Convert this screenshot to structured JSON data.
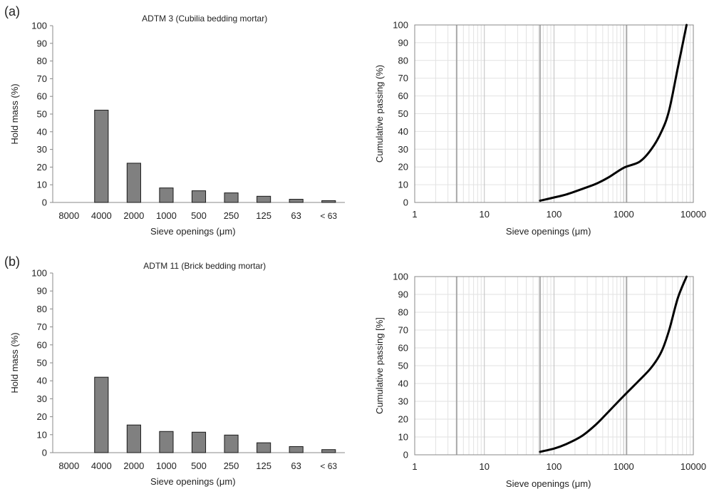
{
  "panels": [
    {
      "label": "(a)"
    },
    {
      "label": "(b)"
    }
  ],
  "colors": {
    "bar_fill": "#808080",
    "bar_stroke": "#1a1a1a",
    "curve": "#000000",
    "grid_major": "#bfbfbf",
    "grid_minor": "#e2e2e2",
    "axis": "#888888"
  },
  "chart_data": [
    {
      "type": "bar",
      "panel": "(a)",
      "title": "ADTM 3 (Cubilia bedding mortar)",
      "xlabel": "Sieve openings (μm)",
      "ylabel": "Hold mass (%)",
      "categories": [
        "8000",
        "4000",
        "2000",
        "1000",
        "500",
        "250",
        "125",
        "63",
        "< 63"
      ],
      "values": [
        0,
        52.2,
        22.2,
        8.2,
        6.6,
        5.4,
        3.5,
        1.8,
        1.0
      ],
      "ylim": [
        0,
        100
      ],
      "yticks": [
        0,
        10,
        20,
        30,
        40,
        50,
        60,
        70,
        80,
        90,
        100
      ],
      "grid": false
    },
    {
      "type": "line",
      "panel": "(a)",
      "title": "",
      "xlabel": "Sieve openings (μm)",
      "ylabel": "Cumulative passing (%)",
      "xscale": "log",
      "xlim": [
        1,
        10000
      ],
      "xticks": [
        "1",
        "10",
        "100",
        "1000",
        "10000"
      ],
      "ylim": [
        0,
        100
      ],
      "yticks": [
        0,
        10,
        20,
        30,
        40,
        50,
        60,
        70,
        80,
        90,
        100
      ],
      "grid": true,
      "reference_lines_x": [
        4,
        63,
        1100
      ],
      "series": [
        {
          "x": [
            63,
            100,
            150,
            250,
            400,
            600,
            1000,
            1700,
            2500,
            3500,
            4500,
            6000,
            8000
          ],
          "y": [
            1.0,
            2.8,
            4.5,
            7.5,
            10.5,
            14.0,
            19.5,
            23.0,
            30.0,
            40.0,
            52.0,
            76.0,
            100.0
          ]
        }
      ]
    },
    {
      "type": "bar",
      "panel": "(b)",
      "title": "ADTM 11 (Brick bedding mortar)",
      "xlabel": "Sieve openings (μm)",
      "ylabel": "Hold mass (%)",
      "categories": [
        "8000",
        "4000",
        "2000",
        "1000",
        "500",
        "250",
        "125",
        "63",
        "< 63"
      ],
      "values": [
        0,
        42.0,
        15.4,
        11.8,
        11.4,
        9.8,
        5.5,
        3.4,
        1.7
      ],
      "ylim": [
        0,
        100
      ],
      "yticks": [
        0,
        10,
        20,
        30,
        40,
        50,
        60,
        70,
        80,
        90,
        100
      ],
      "grid": false
    },
    {
      "type": "line",
      "panel": "(b)",
      "title": "",
      "xlabel": "Sieve openings (μm)",
      "ylabel": "Cumulative passing [%]",
      "xscale": "log",
      "xlim": [
        1,
        10000
      ],
      "xticks": [
        "1",
        "10",
        "100",
        "1000",
        "10000"
      ],
      "ylim": [
        0,
        100
      ],
      "yticks": [
        0,
        10,
        20,
        30,
        40,
        50,
        60,
        70,
        80,
        90,
        100
      ],
      "grid": true,
      "reference_lines_x": [
        4,
        63,
        1100
      ],
      "series": [
        {
          "x": [
            63,
            100,
            150,
            250,
            400,
            600,
            1000,
            1600,
            2500,
            3500,
            4500,
            6000,
            8000
          ],
          "y": [
            1.7,
            3.5,
            6.0,
            10.5,
            17.0,
            24.0,
            33.0,
            41.0,
            49.0,
            58.0,
            70.0,
            88.0,
            100.0
          ]
        }
      ]
    }
  ]
}
